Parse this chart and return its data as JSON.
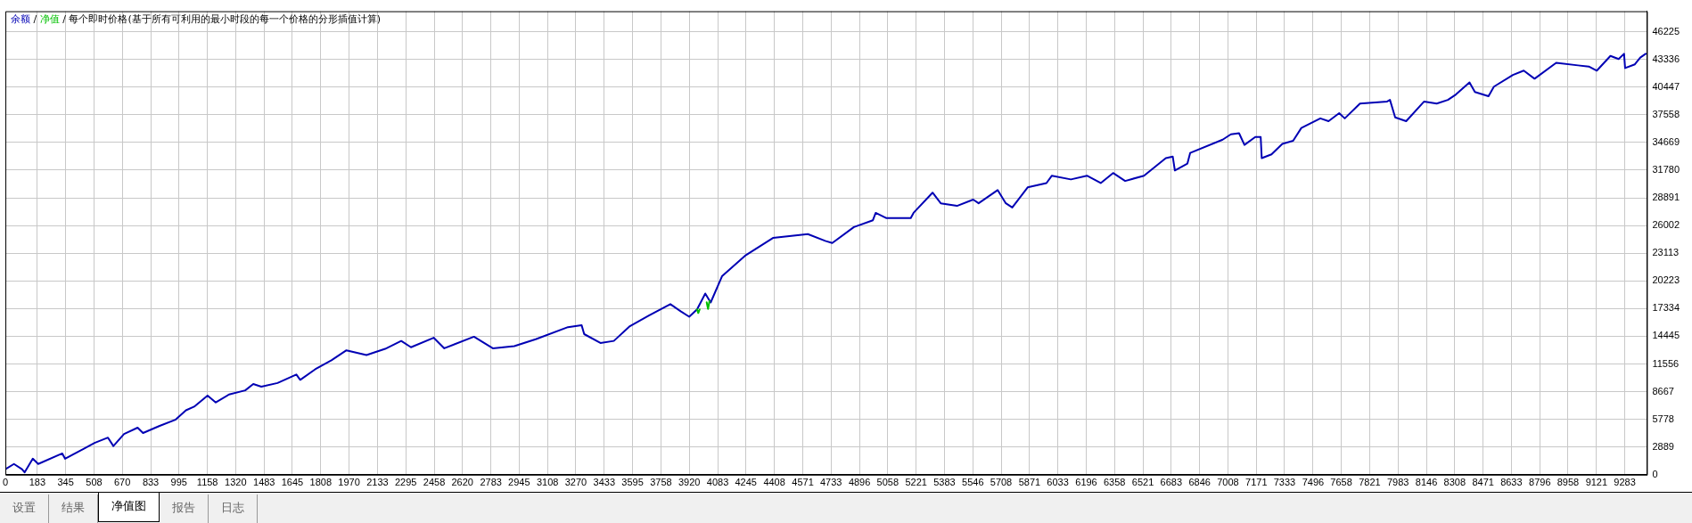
{
  "chart_data": {
    "type": "line",
    "title": "每个即时价格(基于所有可利用的最小时段的每一个价格的分形插值计算)",
    "legend": "top left",
    "grid": true,
    "line_style": "solid",
    "marker": "none",
    "annotations": [
      "/",
      "设置",
      "结果",
      "净值图",
      "报告",
      "日志"
    ],
    "xlim": [
      0,
      9410
    ],
    "xticks": [
      0,
      183,
      345,
      508,
      670,
      833,
      995,
      1158,
      1320,
      1483,
      1645,
      1808,
      1970,
      2133,
      2295,
      2458,
      2620,
      2783,
      2945,
      3108,
      3270,
      3433,
      3595,
      3758,
      3920,
      4083,
      4245,
      4408,
      4571,
      4733,
      4896,
      5058,
      5221,
      5383,
      5546,
      5708,
      5871,
      6033,
      6196,
      6358,
      6521,
      6683,
      6846,
      7008,
      7171,
      7333,
      7496,
      7658,
      7821,
      7983,
      8146,
      8308,
      8471,
      8633,
      8796,
      8958,
      9121,
      9283
    ],
    "ylim": [
      0,
      48360
    ],
    "yticks": [
      0,
      2889,
      5778,
      8667,
      11556,
      14445,
      17334,
      20223,
      23113,
      26002,
      28891,
      31780,
      34669,
      37558,
      40447,
      43336,
      46225
    ],
    "series": [
      {
        "name": "余额",
        "color": "#0000b4",
        "x": [
          0,
          49,
          95,
          110,
          157,
          188,
          326,
          342,
          450,
          511,
          588,
          619,
          680,
          758,
          789,
          881,
          974,
          1035,
          1082,
          1159,
          1206,
          1282,
          1375,
          1421,
          1467,
          1560,
          1668,
          1690,
          1776,
          1869,
          1955,
          2070,
          2177,
          2269,
          2325,
          2455,
          2516,
          2686,
          2794,
          2917,
          3040,
          3225,
          3303,
          3318,
          3411,
          3488,
          3580,
          3689,
          3812,
          3873,
          3920,
          3965,
          4012,
          4043,
          4108,
          4245,
          4400,
          4600,
          4700,
          4740,
          4864,
          4973,
          4989,
          5051,
          5190,
          5206,
          5315,
          5362,
          5455,
          5548,
          5579,
          5688,
          5735,
          5772,
          5860,
          5968,
          5999,
          6108,
          6200,
          6279,
          6350,
          6419,
          6527,
          6652,
          6692,
          6704,
          6776,
          6792,
          6978,
          7025,
          7072,
          7103,
          7165,
          7196,
          7202,
          7258,
          7320,
          7382,
          7429,
          7538,
          7585,
          7646,
          7678,
          7765,
          7921,
          7937,
          7967,
          8030,
          8133,
          8205,
          8269,
          8315,
          8393,
          8424,
          8502,
          8533,
          8642,
          8704,
          8766,
          8890,
          9015,
          9077,
          9123,
          9201,
          9248,
          9279,
          9285,
          9341,
          9372,
          9403
        ],
        "values": [
          570,
          1120,
          570,
          245,
          1670,
          1120,
          2220,
          1670,
          2715,
          3315,
          3870,
          2990,
          4250,
          4910,
          4350,
          5070,
          5730,
          6720,
          7100,
          8260,
          7540,
          8370,
          8800,
          9460,
          9190,
          9570,
          10450,
          9900,
          11000,
          11940,
          12980,
          12480,
          13130,
          13960,
          13300,
          14290,
          13190,
          14400,
          13190,
          13410,
          14130,
          15400,
          15610,
          14670,
          13750,
          13960,
          15500,
          16600,
          17800,
          17030,
          16480,
          17250,
          18900,
          17970,
          20710,
          22910,
          24700,
          25100,
          24400,
          24180,
          25840,
          26550,
          27320,
          26770,
          26770,
          27320,
          29430,
          28320,
          28050,
          28710,
          28320,
          29700,
          28320,
          27880,
          29980,
          30430,
          31200,
          30810,
          31200,
          30430,
          31480,
          30650,
          31200,
          33030,
          33190,
          31750,
          32470,
          33580,
          34960,
          35520,
          35630,
          34410,
          35240,
          35240,
          33030,
          33420,
          34520,
          34850,
          36180,
          37180,
          36890,
          37730,
          37180,
          38720,
          38940,
          39110,
          37280,
          36890,
          38940,
          38720,
          39110,
          39670,
          40930,
          39940,
          39490,
          40490,
          41710,
          42160,
          41320,
          42980,
          42710,
          42590,
          42160,
          43700,
          43370,
          43920,
          42430,
          42820,
          43530,
          43920
        ]
      },
      {
        "name": "净值",
        "color": "#00c000",
        "x": [
          3965,
          3972,
          3980,
          3990,
          4020,
          4028,
          4036
        ],
        "values": [
          17250,
          16870,
          17250,
          null,
          18000,
          17300,
          18100
        ]
      }
    ]
  }
}
